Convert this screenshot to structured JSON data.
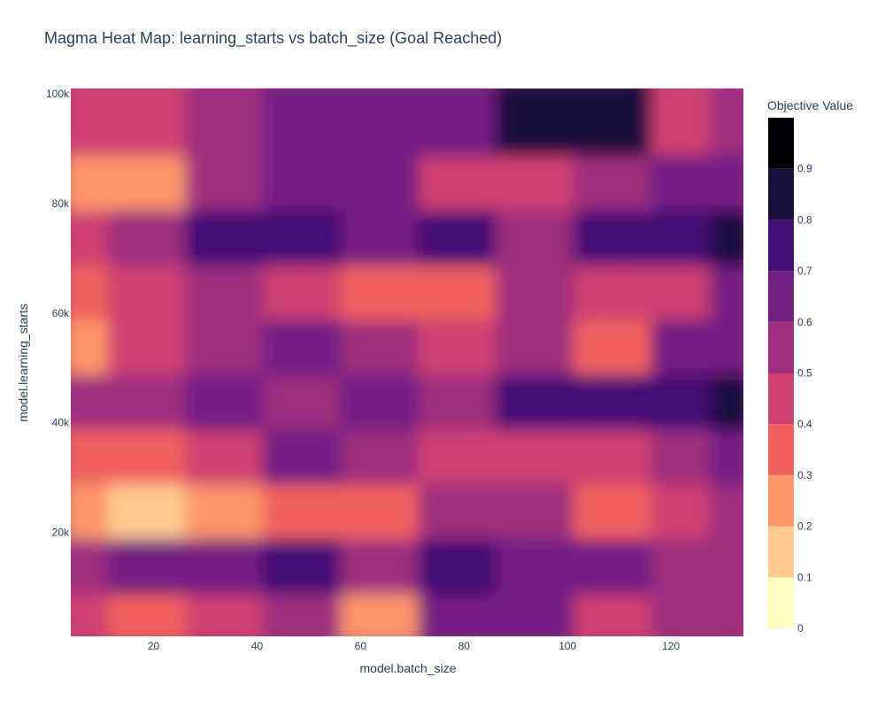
{
  "chart_data": {
    "type": "heatmap",
    "subtype": "contour",
    "title": "Magma Heat Map: learning_starts vs batch_size (Goal Reached)",
    "xlabel": "model.batch_size",
    "ylabel": "model.learning_starts",
    "xlim": [
      4,
      134
    ],
    "ylim": [
      1000,
      101000
    ],
    "x_ticks": [
      20,
      40,
      60,
      80,
      100,
      120
    ],
    "x_tick_labels": [
      "20",
      "40",
      "60",
      "80",
      "100",
      "120"
    ],
    "y_ticks": [
      20000,
      40000,
      60000,
      80000,
      100000
    ],
    "y_tick_labels": [
      "20k",
      "40k",
      "60k",
      "80k",
      "100k"
    ],
    "colorbar": {
      "title": "Objective Value",
      "colorscale": "magma",
      "range": [
        0,
        1
      ],
      "ticks": [
        0,
        0.1,
        0.2,
        0.3,
        0.4,
        0.5,
        0.6,
        0.7,
        0.8,
        0.9
      ],
      "tick_labels": [
        "0",
        "0.1",
        "0.2",
        "0.3",
        "0.4",
        "0.5",
        "0.6",
        "0.7",
        "0.8",
        "0.9"
      ]
    },
    "x": [
      5,
      20,
      35,
      50,
      65,
      80,
      95,
      110,
      125,
      133
    ],
    "y": [
      5000,
      15000,
      25000,
      35000,
      45000,
      55000,
      65000,
      75000,
      85000,
      95000
    ],
    "z": [
      [
        0.45,
        0.35,
        0.4,
        0.5,
        0.25,
        0.6,
        0.65,
        0.45,
        0.55,
        0.55
      ],
      [
        0.55,
        0.6,
        0.65,
        0.75,
        0.55,
        0.7,
        0.65,
        0.6,
        0.55,
        0.55
      ],
      [
        0.2,
        0.15,
        0.25,
        0.35,
        0.3,
        0.55,
        0.55,
        0.35,
        0.45,
        0.5
      ],
      [
        0.35,
        0.3,
        0.45,
        0.6,
        0.5,
        0.45,
        0.4,
        0.45,
        0.55,
        0.6
      ],
      [
        0.5,
        0.55,
        0.6,
        0.5,
        0.6,
        0.5,
        0.75,
        0.7,
        0.7,
        0.8
      ],
      [
        0.2,
        0.4,
        0.55,
        0.6,
        0.5,
        0.45,
        0.55,
        0.35,
        0.6,
        0.65
      ],
      [
        0.3,
        0.4,
        0.55,
        0.4,
        0.35,
        0.3,
        0.55,
        0.45,
        0.4,
        0.65
      ],
      [
        0.4,
        0.55,
        0.7,
        0.7,
        0.6,
        0.7,
        0.55,
        0.7,
        0.75,
        0.8
      ],
      [
        0.25,
        0.25,
        0.5,
        0.6,
        0.65,
        0.4,
        0.45,
        0.55,
        0.6,
        0.65
      ],
      [
        0.45,
        0.4,
        0.55,
        0.6,
        0.6,
        0.65,
        0.8,
        0.85,
        0.4,
        0.5
      ]
    ]
  }
}
